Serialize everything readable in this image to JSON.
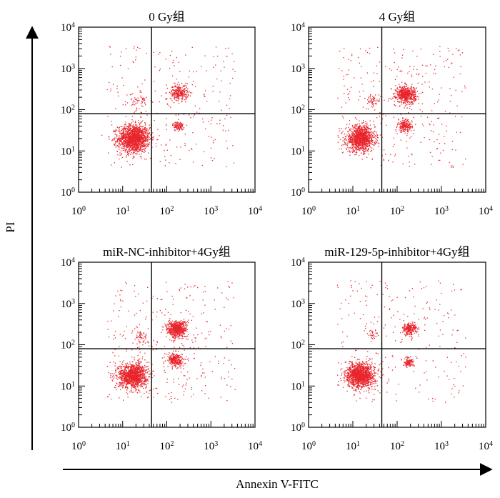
{
  "figure": {
    "ylabel": "PI",
    "xlabel": "Annexin V-FITC"
  },
  "colors": {
    "dots": "#e8242b",
    "axis": "#000000"
  },
  "chart_data": [
    {
      "type": "scatter",
      "title": "0 Gy组",
      "x_scale": "log",
      "y_scale": "log",
      "xlim": [
        1,
        10000
      ],
      "ylim": [
        1,
        10000
      ],
      "x_ticks": [
        "10^0",
        "10^1",
        "10^2",
        "10^3",
        "10^4"
      ],
      "y_ticks": [
        "10^0",
        "10^1",
        "10^2",
        "10^3",
        "10^4"
      ],
      "gate": {
        "x": 45,
        "y": 80
      },
      "clusters": [
        {
          "x": 18,
          "y": 20,
          "spread": 0.18,
          "n": 1500
        },
        {
          "x": 190,
          "y": 260,
          "spread": 0.1,
          "n": 260
        },
        {
          "x": 180,
          "y": 40,
          "spread": 0.06,
          "n": 110
        },
        {
          "x": 25,
          "y": 160,
          "spread": 0.1,
          "n": 45
        }
      ],
      "background_points": 260
    },
    {
      "type": "scatter",
      "title": "4 Gy组",
      "x_scale": "log",
      "y_scale": "log",
      "xlim": [
        1,
        10000
      ],
      "ylim": [
        1,
        10000
      ],
      "x_ticks": [
        "10^0",
        "10^1",
        "10^2",
        "10^3",
        "10^4"
      ],
      "y_ticks": [
        "10^0",
        "10^1",
        "10^2",
        "10^3",
        "10^4"
      ],
      "gate": {
        "x": 45,
        "y": 80
      },
      "clusters": [
        {
          "x": 15,
          "y": 20,
          "spread": 0.16,
          "n": 1150
        },
        {
          "x": 160,
          "y": 230,
          "spread": 0.11,
          "n": 560
        },
        {
          "x": 150,
          "y": 40,
          "spread": 0.08,
          "n": 190
        },
        {
          "x": 28,
          "y": 160,
          "spread": 0.08,
          "n": 50
        }
      ],
      "background_points": 300
    },
    {
      "type": "scatter",
      "title": "miR-NC-inhibitor+4Gy组",
      "x_scale": "log",
      "y_scale": "log",
      "xlim": [
        1,
        10000
      ],
      "ylim": [
        1,
        10000
      ],
      "x_ticks": [
        "10^0",
        "10^1",
        "10^2",
        "10^3",
        "10^4"
      ],
      "y_ticks": [
        "10^0",
        "10^1",
        "10^2",
        "10^3",
        "10^4"
      ],
      "gate": {
        "x": 45,
        "y": 80
      },
      "clusters": [
        {
          "x": 17,
          "y": 18,
          "spread": 0.16,
          "n": 1250
        },
        {
          "x": 170,
          "y": 240,
          "spread": 0.11,
          "n": 620
        },
        {
          "x": 160,
          "y": 42,
          "spread": 0.09,
          "n": 260
        },
        {
          "x": 25,
          "y": 160,
          "spread": 0.08,
          "n": 45
        }
      ],
      "background_points": 320
    },
    {
      "type": "scatter",
      "title": "miR-129-5p-inhibitor+4Gy组",
      "x_scale": "log",
      "y_scale": "log",
      "xlim": [
        1,
        10000
      ],
      "ylim": [
        1,
        10000
      ],
      "x_ticks": [
        "10^0",
        "10^1",
        "10^2",
        "10^3",
        "10^4"
      ],
      "y_ticks": [
        "10^0",
        "10^1",
        "10^2",
        "10^3",
        "10^4"
      ],
      "gate": {
        "x": 45,
        "y": 80
      },
      "clusters": [
        {
          "x": 15,
          "y": 18,
          "spread": 0.16,
          "n": 1300
        },
        {
          "x": 190,
          "y": 240,
          "spread": 0.08,
          "n": 230
        },
        {
          "x": 180,
          "y": 38,
          "spread": 0.06,
          "n": 110
        },
        {
          "x": 28,
          "y": 165,
          "spread": 0.07,
          "n": 30
        }
      ],
      "background_points": 230
    }
  ]
}
